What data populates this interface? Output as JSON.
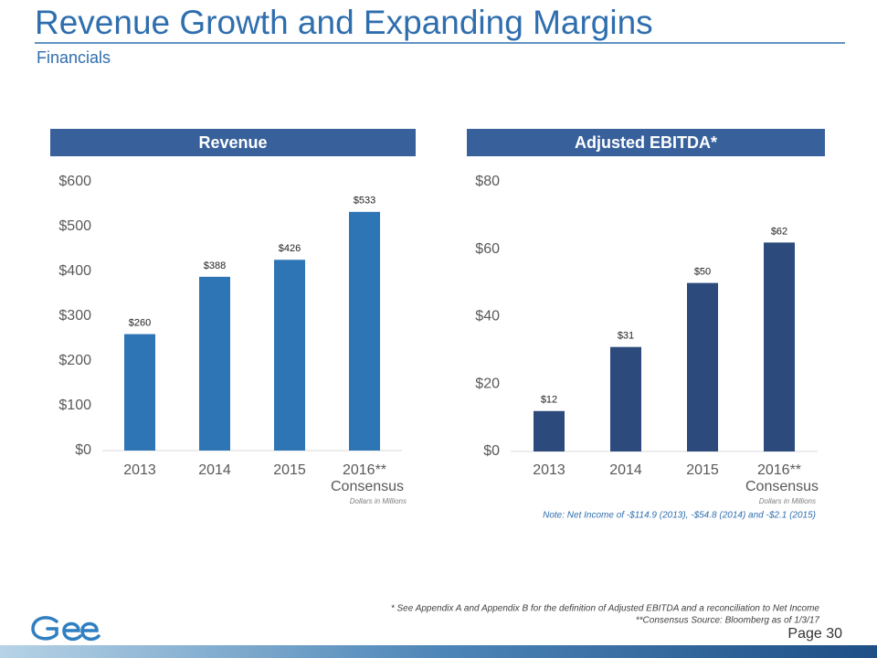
{
  "page": {
    "title": "Revenue Growth and Expanding Margins",
    "subtitle": "Financials",
    "footnotes": [
      "* See Appendix A and Appendix B for the definition of Adjusted EBITDA and a reconciliation to Net Income",
      "**Consensus Source:  Bloomberg as of 1/3/17"
    ],
    "page_number": "Page 30"
  },
  "chart_data": [
    {
      "type": "bar",
      "title": "Revenue",
      "categories": [
        "2013",
        "2014",
        "2015",
        "2016** Consensus"
      ],
      "values": [
        260,
        388,
        426,
        533
      ],
      "value_labels": [
        "$260",
        "$388",
        "$426",
        "$533"
      ],
      "color": "#2e75b6",
      "ylim": [
        0,
        600
      ],
      "yticks": [
        {
          "value": 0,
          "label": "$0"
        },
        {
          "value": 100,
          "label": "$100"
        },
        {
          "value": 200,
          "label": "$200"
        },
        {
          "value": 300,
          "label": "$300"
        },
        {
          "value": 400,
          "label": "$400"
        },
        {
          "value": 500,
          "label": "$500"
        },
        {
          "value": 600,
          "label": "$600"
        }
      ],
      "units_note": "Dollars in Millions"
    },
    {
      "type": "bar",
      "title": "Adjusted EBITDA*",
      "categories": [
        "2013",
        "2014",
        "2015",
        "2016** Consensus"
      ],
      "values": [
        12,
        31,
        50,
        62
      ],
      "value_labels": [
        "$12",
        "$31",
        "$50",
        "$62"
      ],
      "color": "#2c4a7c",
      "ylim": [
        0,
        80
      ],
      "yticks": [
        {
          "value": 0,
          "label": "$0"
        },
        {
          "value": 20,
          "label": "$20"
        },
        {
          "value": 40,
          "label": "$40"
        },
        {
          "value": 60,
          "label": "$60"
        },
        {
          "value": 80,
          "label": "$80"
        }
      ],
      "units_note": "Dollars in Millions",
      "note": "Note:  Net Income of -$114.9 (2013), -$54.8 (2014) and -$2.1 (2015)"
    }
  ]
}
